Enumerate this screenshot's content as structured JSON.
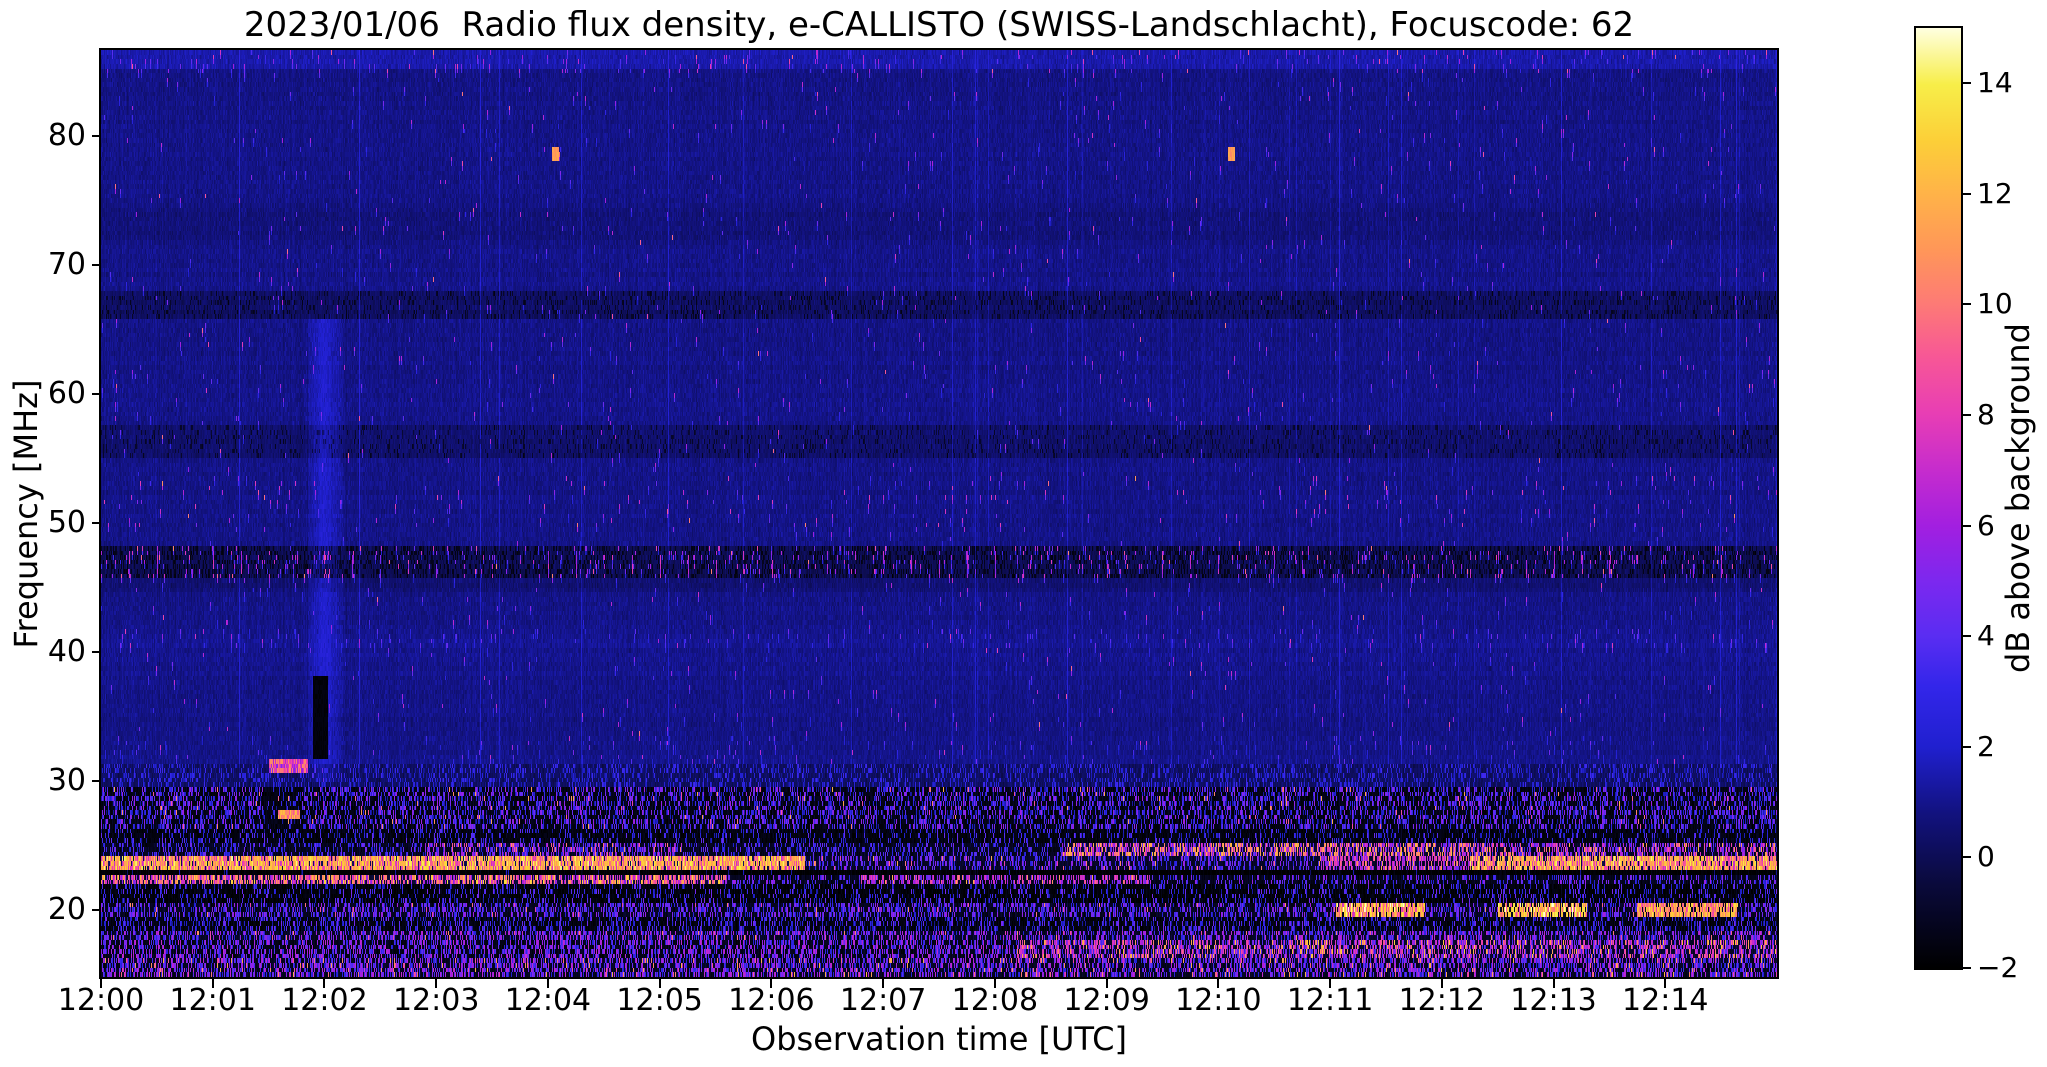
{
  "title": "2023/01/06  Radio flux density, e-CALLISTO (SWISS-Landschlacht), Focuscode: 62",
  "axes": {
    "xlabel": "Observation time [UTC]",
    "ylabel": "Frequency [MHz]",
    "x_tick_labels": [
      "12:00",
      "12:01",
      "12:02",
      "12:03",
      "12:04",
      "12:05",
      "12:06",
      "12:07",
      "12:08",
      "12:09",
      "12:10",
      "12:11",
      "12:12",
      "12:13",
      "12:14"
    ],
    "y_tick_labels": [
      "20",
      "30",
      "40",
      "50",
      "60",
      "70",
      "80"
    ],
    "y_tick_values": [
      20,
      30,
      40,
      50,
      60,
      70,
      80
    ]
  },
  "colorbar": {
    "label": "dB above background",
    "tick_labels": [
      "14",
      "12",
      "10",
      "8",
      "6",
      "4",
      "2",
      "0",
      "−2"
    ],
    "tick_values": [
      14,
      12,
      10,
      8,
      6,
      4,
      2,
      0,
      -2
    ],
    "min_db": -2,
    "max_db": 15,
    "stops": [
      [
        0.0,
        "#000000"
      ],
      [
        0.09,
        "#0a0a3c"
      ],
      [
        0.165,
        "#12127f"
      ],
      [
        0.235,
        "#2020cf"
      ],
      [
        0.3,
        "#3326ea"
      ],
      [
        0.353,
        "#5a2df2"
      ],
      [
        0.41,
        "#7b28ef"
      ],
      [
        0.47,
        "#a21fe0"
      ],
      [
        0.53,
        "#c62ccd"
      ],
      [
        0.59,
        "#e83eb4"
      ],
      [
        0.65,
        "#f75796"
      ],
      [
        0.706,
        "#fd7a76"
      ],
      [
        0.765,
        "#ff9758"
      ],
      [
        0.824,
        "#ffb348"
      ],
      [
        0.88,
        "#fccf38"
      ],
      [
        0.94,
        "#f7ee49"
      ],
      [
        1.0,
        "#ffffe0"
      ]
    ]
  },
  "chart_data": {
    "type": "heatmap",
    "title": "2023/01/06  Radio flux density, e-CALLISTO (SWISS-Landschlacht), Focuscode: 62",
    "xlabel": "Observation time [UTC]",
    "ylabel": "Frequency [MHz]",
    "colorbar_label": "dB above background",
    "start_time_utc": "12:00",
    "x_range_minutes": [
      0,
      15
    ],
    "x_tick_interval_minutes": 1,
    "freq_range_mhz": [
      14.8,
      86.7
    ],
    "color_range_db": [
      -2,
      15
    ],
    "grid": false,
    "legend": "colorbar-right",
    "render_spec": {
      "seed": 42,
      "background_db": 0.9,
      "noise_db": 1.1,
      "low_region_top_mhz": 31.5,
      "quiet_bands": [
        {
          "f": [
            45.6,
            48.3
          ],
          "delta": -0.9,
          "dark_p": 0.3
        },
        {
          "f": [
            44.6,
            45.6
          ],
          "delta": -0.35
        },
        {
          "f": [
            55.0,
            57.6
          ],
          "delta": -0.45,
          "dark_p": 0.12
        },
        {
          "f": [
            65.8,
            68.0
          ],
          "delta": -0.6,
          "dark_p": 0.15
        },
        {
          "f": [
            72.0,
            74.5
          ],
          "delta": -0.2
        },
        {
          "f": [
            85.2,
            86.7
          ],
          "delta": 0.55
        },
        {
          "f": [
            38.0,
            41.8
          ],
          "delta": 0.1
        }
      ],
      "upper_speckle": {
        "base_p": 0.006,
        "rows": [
          {
            "f": [
              45.6,
              48.3
            ],
            "p": 0.05,
            "sv": [
              3,
              7.5
            ]
          },
          {
            "f": [
              40.2,
              41.6
            ],
            "p": 0.03,
            "sv": [
              2.5,
              5
            ]
          },
          {
            "f": [
              49.5,
              53.5
            ],
            "p": 0.012,
            "sv": [
              3,
              8
            ]
          },
          {
            "f": [
              85.0,
              86.7
            ],
            "p": 0.03,
            "sv": [
              3,
              7
            ]
          },
          {
            "f": [
              31.5,
              33.5
            ],
            "p": 0.02,
            "sv": [
              2,
              5
            ]
          }
        ]
      },
      "periodic_rfi": {
        "f": [
          45.7,
          48.05
        ],
        "period_s": 15,
        "value": [
          4.5,
          8
        ]
      },
      "bands": [
        {
          "f": [
            29.6,
            31.5
          ],
          "base": 0.2,
          "p": 0.3,
          "sv": [
            1,
            3.5
          ]
        },
        {
          "f": [
            26.3,
            29.6
          ],
          "base": -1.5,
          "p": 0.4,
          "sv": [
            1,
            6
          ],
          "p2": 0.012,
          "sv2": [
            8,
            12
          ],
          "segs": [
            {
              "t": [
                1.45,
                1.8
              ],
              "p": 0.15,
              "sv": [
                1,
                4
              ]
            }
          ]
        },
        {
          "f": [
            25.2,
            26.3
          ],
          "base": -1.6,
          "p": 0.2,
          "sv": [
            1,
            4.5
          ]
        },
        {
          "f": [
            24.2,
            25.2
          ],
          "base": -1.2,
          "p": 0.32,
          "sv": [
            1.5,
            5
          ],
          "segs": [
            {
              "t": [
                2.9,
                5.2
              ],
              "p": 0.45,
              "sv": [
                2,
                7
              ],
              "p2": 0.08,
              "sv2": [
                8,
                11
              ]
            },
            {
              "t": [
                8.6,
                12.4
              ],
              "base": -0.8,
              "p": 0.5,
              "sv": [
                3,
                8
              ],
              "p2": 0.3,
              "sv2": [
                9,
                12.5
              ]
            },
            {
              "t": [
                12.4,
                15
              ],
              "p": 0.45,
              "sv": [
                3,
                8
              ],
              "p2": 0.15,
              "sv2": [
                8,
                12
              ]
            }
          ]
        },
        {
          "f": [
            23.05,
            24.2
          ],
          "base": -1.0,
          "p": 0.35,
          "sv": [
            2,
            6
          ],
          "p2": 0.03,
          "sv2": [
            8,
            12
          ],
          "segs": [
            {
              "t": [
                0,
                6.3
              ],
              "base": 0,
              "p": 0.85,
              "sv": [
                7,
                13
              ],
              "p2": 0.35,
              "sv2": [
                11,
                14.5
              ]
            },
            {
              "t": [
                10.9,
                12.25
              ],
              "p": 0.5,
              "sv": [
                4,
                9
              ],
              "p2": 0.1,
              "sv2": [
                9,
                12
              ]
            },
            {
              "t": [
                12.25,
                15
              ],
              "base": -0.3,
              "p": 0.8,
              "sv": [
                7,
                13
              ],
              "p2": 0.3,
              "sv2": [
                11,
                14.5
              ]
            }
          ]
        },
        {
          "f": [
            22.85,
            23.05
          ],
          "base": -1.95,
          "p": 0.03,
          "sv": [
            0,
            2
          ]
        },
        {
          "f": [
            22.0,
            22.85
          ],
          "base": -1.3,
          "p": 0.3,
          "sv": [
            2,
            6
          ],
          "segs": [
            {
              "t": [
                0,
                5.6
              ],
              "base": -0.6,
              "p": 0.65,
              "sv": [
                5,
                11
              ],
              "p2": 0.18,
              "sv2": [
                10,
                13.5
              ]
            },
            {
              "t": [
                6.8,
                9.4
              ],
              "p": 0.5,
              "sv": [
                4,
                9
              ],
              "p2": 0.05,
              "sv2": [
                9,
                12
              ]
            }
          ]
        },
        {
          "f": [
            20.6,
            22.0
          ],
          "base": -1.75,
          "p": 0.22,
          "sv": [
            1,
            5
          ]
        },
        {
          "f": [
            19.55,
            20.6
          ],
          "base": -1.2,
          "p": 0.42,
          "sv": [
            2,
            6
          ],
          "p2": 0.01,
          "sv2": [
            8,
            11
          ],
          "segs": [
            {
              "t": [
                11.05,
                11.85
              ],
              "p": 0.8,
              "sv": [
                7,
                13
              ],
              "p2": 0.35,
              "sv2": [
                12,
                15
              ]
            },
            {
              "t": [
                12.5,
                13.3
              ],
              "p": 0.7,
              "sv": [
                8,
                14
              ],
              "p2": 0.3,
              "sv2": [
                12,
                15
              ]
            },
            {
              "t": [
                13.75,
                14.65
              ],
              "p": 0.75,
              "sv": [
                8,
                13
              ],
              "p2": 0.25,
              "sv2": [
                11,
                14
              ]
            }
          ]
        },
        {
          "f": [
            18.5,
            19.55
          ],
          "base": -1.6,
          "p": 0.3,
          "sv": [
            1,
            5
          ]
        },
        {
          "f": [
            17.6,
            18.5
          ],
          "base": -1.1,
          "p": 0.45,
          "sv": [
            2,
            7
          ],
          "p2": 0.02,
          "sv2": [
            8,
            11
          ]
        },
        {
          "f": [
            16.4,
            17.6
          ],
          "base": -1.4,
          "p": 0.45,
          "sv": [
            2,
            7
          ],
          "segs": [
            {
              "t": [
                8.2,
                15
              ],
              "base": -1.0,
              "p": 0.55,
              "sv": [
                3,
                9
              ],
              "p2": 0.1,
              "sv2": [
                9,
                13
              ]
            }
          ]
        },
        {
          "f": [
            14.7,
            16.4
          ],
          "base": -1.2,
          "p": 0.5,
          "sv": [
            2,
            7
          ],
          "p2": 0.05,
          "sv2": [
            8,
            12
          ]
        }
      ],
      "events": {
        "vertical_event_1202": {
          "t_center": 2.0,
          "halo_trange": [
            1.85,
            2.2
          ],
          "halo_frange": [
            30,
            66
          ],
          "halo_add_db": 1.2,
          "core_trange": [
            1.9,
            2.03
          ],
          "core_frange": [
            31.6,
            38.3
          ],
          "core_value_db": -1.9
        },
        "bright_blob_31mhz": {
          "trange": [
            1.5,
            1.85
          ],
          "frange": [
            30.7,
            31.7
          ],
          "value_db": [
            5,
            11
          ]
        },
        "bright_spot_27mhz": {
          "trange": [
            1.58,
            1.78
          ],
          "frange": [
            26.9,
            27.9
          ],
          "value_db": [
            9,
            13
          ]
        },
        "point_sources_78mhz": [
          {
            "t_minutes": 4.07,
            "f_mhz": 78.6,
            "value_db": 10.5
          },
          {
            "t_minutes": 10.12,
            "f_mhz": 78.6,
            "value_db": 10.5
          }
        ]
      }
    }
  }
}
